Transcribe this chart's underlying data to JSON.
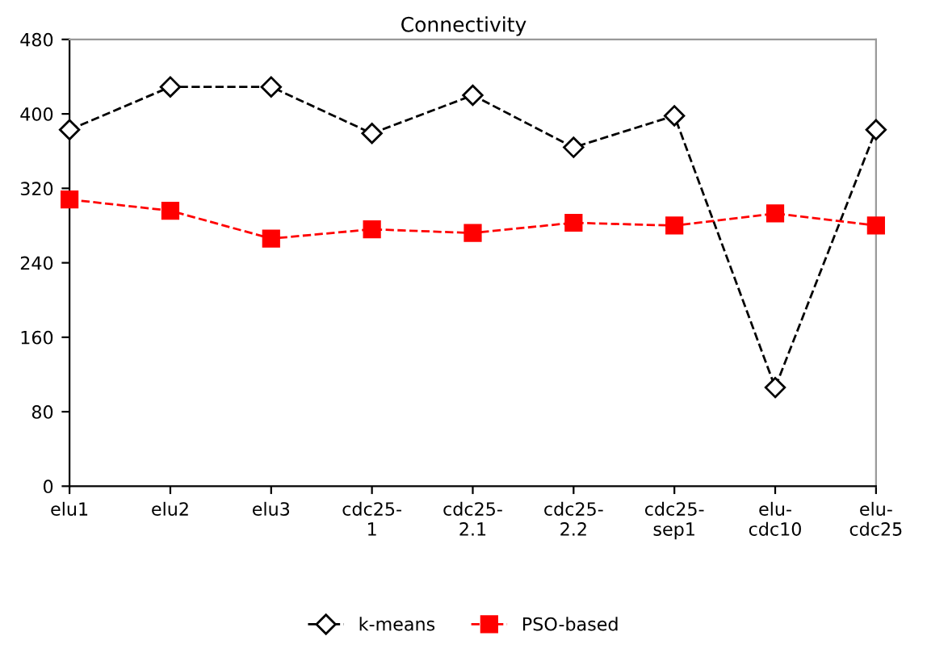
{
  "chart_data": {
    "type": "line",
    "title": "Connectivity",
    "categories": [
      "elu1",
      "elu2",
      "elu3",
      "cdc25-1",
      "cdc25-2.1",
      "cdc25-2.2",
      "cdc25-sep1",
      "elu-cdc10",
      "elu-cdc25"
    ],
    "series": [
      {
        "name": "k-means",
        "color": "#000000",
        "marker": "diamond",
        "values": [
          383,
          429,
          429,
          379,
          420,
          364,
          398,
          106,
          383
        ]
      },
      {
        "name": "PSO-based",
        "color": "#ff0000",
        "marker": "square",
        "values": [
          308,
          296,
          266,
          276,
          272,
          283,
          280,
          293,
          280
        ]
      }
    ],
    "ylim": [
      0,
      480
    ],
    "yticks": [
      0,
      80,
      160,
      240,
      320,
      400,
      480
    ],
    "line_style": "dashed",
    "grid": false,
    "legend": "bottom"
  }
}
